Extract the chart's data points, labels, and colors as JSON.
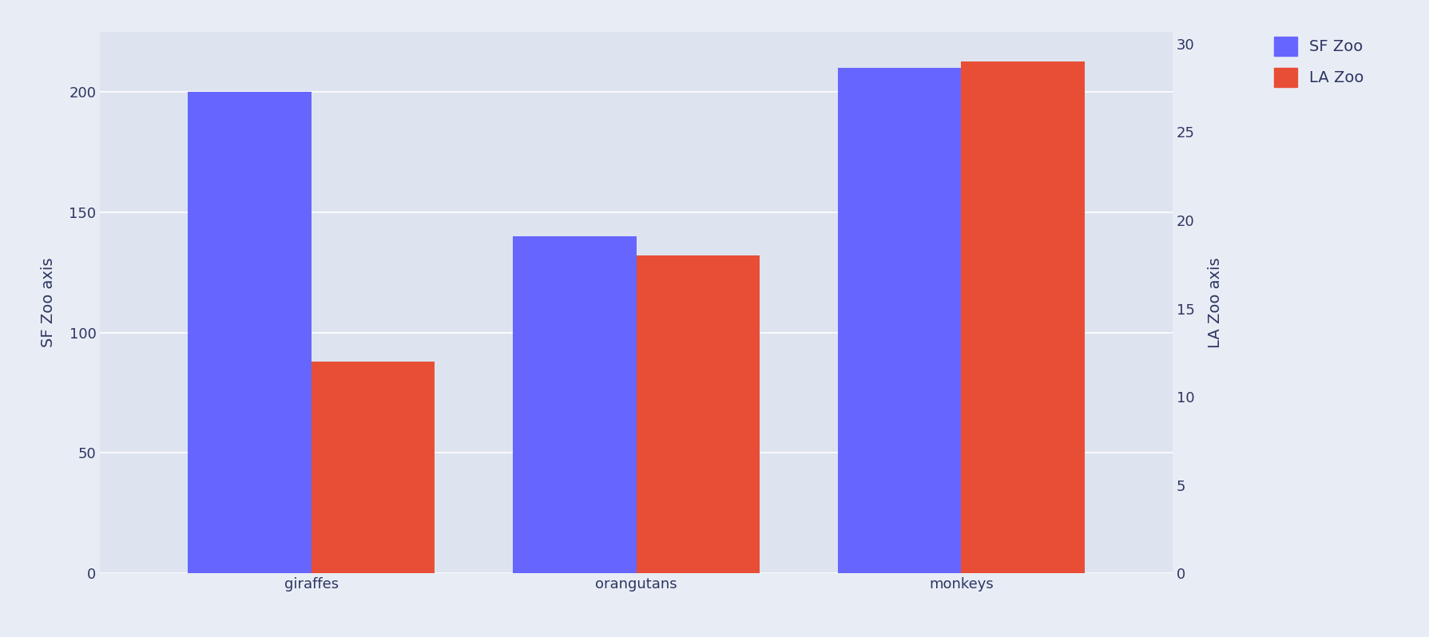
{
  "categories": [
    "giraffes",
    "orangutans",
    "monkeys"
  ],
  "sf_zoo": [
    200,
    140,
    210
  ],
  "la_zoo": [
    12,
    18,
    29
  ],
  "sf_color": "#6666ff",
  "la_color": "#e84e35",
  "ylabel_left": "SF Zoo axis",
  "ylabel_right": "LA Zoo axis",
  "ylim_left": [
    0,
    225
  ],
  "ylim_right": [
    0,
    30.68
  ],
  "legend_labels": [
    "SF Zoo",
    "LA Zoo"
  ],
  "bg_color": "#e8edf5",
  "plot_bg_color": "#dde3ef",
  "bar_width": 0.38,
  "axis_label_fontsize": 14,
  "tick_fontsize": 13,
  "legend_fontsize": 14,
  "yticks_left": [
    0,
    50,
    100,
    150,
    200
  ],
  "yticks_right": [
    0,
    5,
    10,
    15,
    20,
    25,
    30
  ],
  "text_color": "#2d3561"
}
